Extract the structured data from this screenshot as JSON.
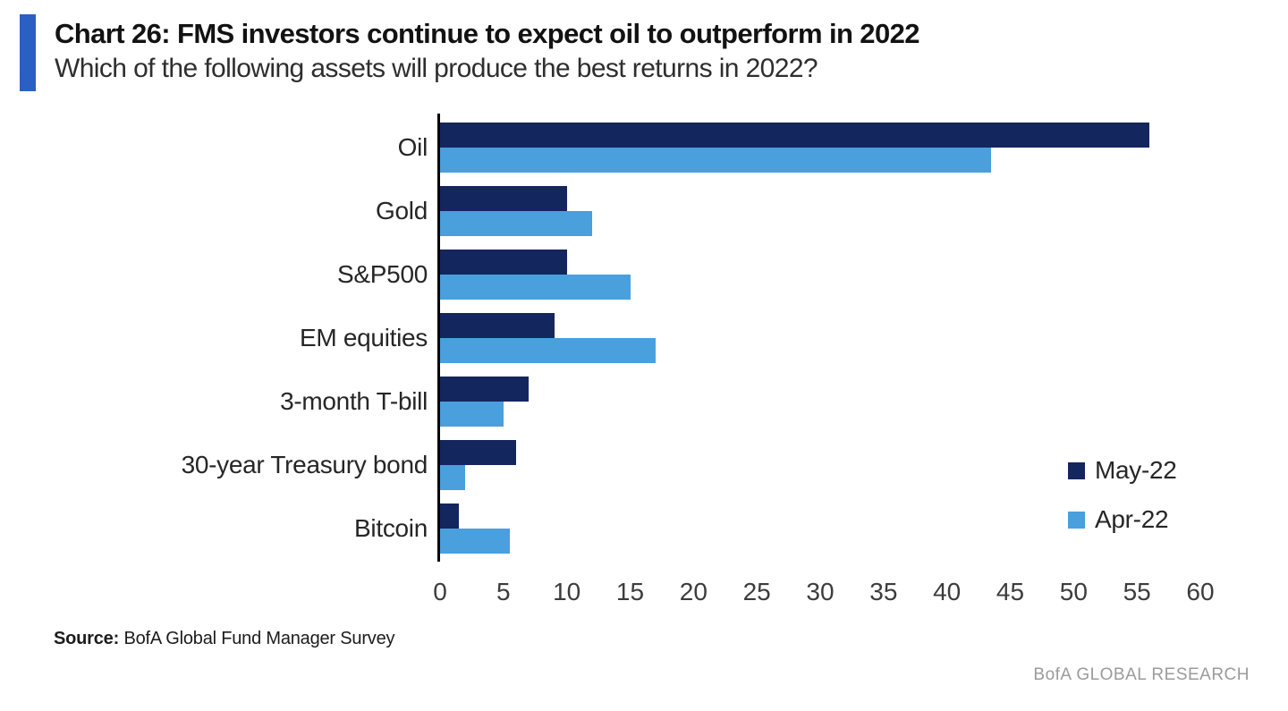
{
  "header": {
    "title": "Chart 26: FMS investors continue to expect oil to outperform in 2022",
    "subtitle": "Which of the following assets will produce the best returns in 2022?",
    "accent_color": "#2a5fc4"
  },
  "chart_data": {
    "type": "bar",
    "orientation": "horizontal",
    "title": "Chart 26: FMS investors continue to expect oil to outperform in 2022",
    "subtitle": "Which of the following assets will produce the best returns in 2022?",
    "categories": [
      "Oil",
      "Gold",
      "S&P500",
      "EM equities",
      "3-month T-bill",
      "30-year Treasury bond",
      "Bitcoin"
    ],
    "series": [
      {
        "name": "May-22",
        "color": "#14265e",
        "values": [
          56,
          10,
          10,
          9,
          7,
          6,
          1.5
        ]
      },
      {
        "name": "Apr-22",
        "color": "#4a9fdd",
        "values": [
          43.5,
          12,
          15,
          17,
          5,
          2,
          5.5
        ]
      }
    ],
    "xlim": [
      0,
      60
    ],
    "xticks": [
      0,
      5,
      10,
      15,
      20,
      25,
      30,
      35,
      40,
      45,
      50,
      55,
      60
    ],
    "xlabel": "",
    "ylabel": "",
    "grid": false,
    "legend_position": "right-middle"
  },
  "footer": {
    "source_label": "Source:",
    "source_text": "BofA Global Fund Manager Survey",
    "brand": "BofA GLOBAL RESEARCH"
  }
}
